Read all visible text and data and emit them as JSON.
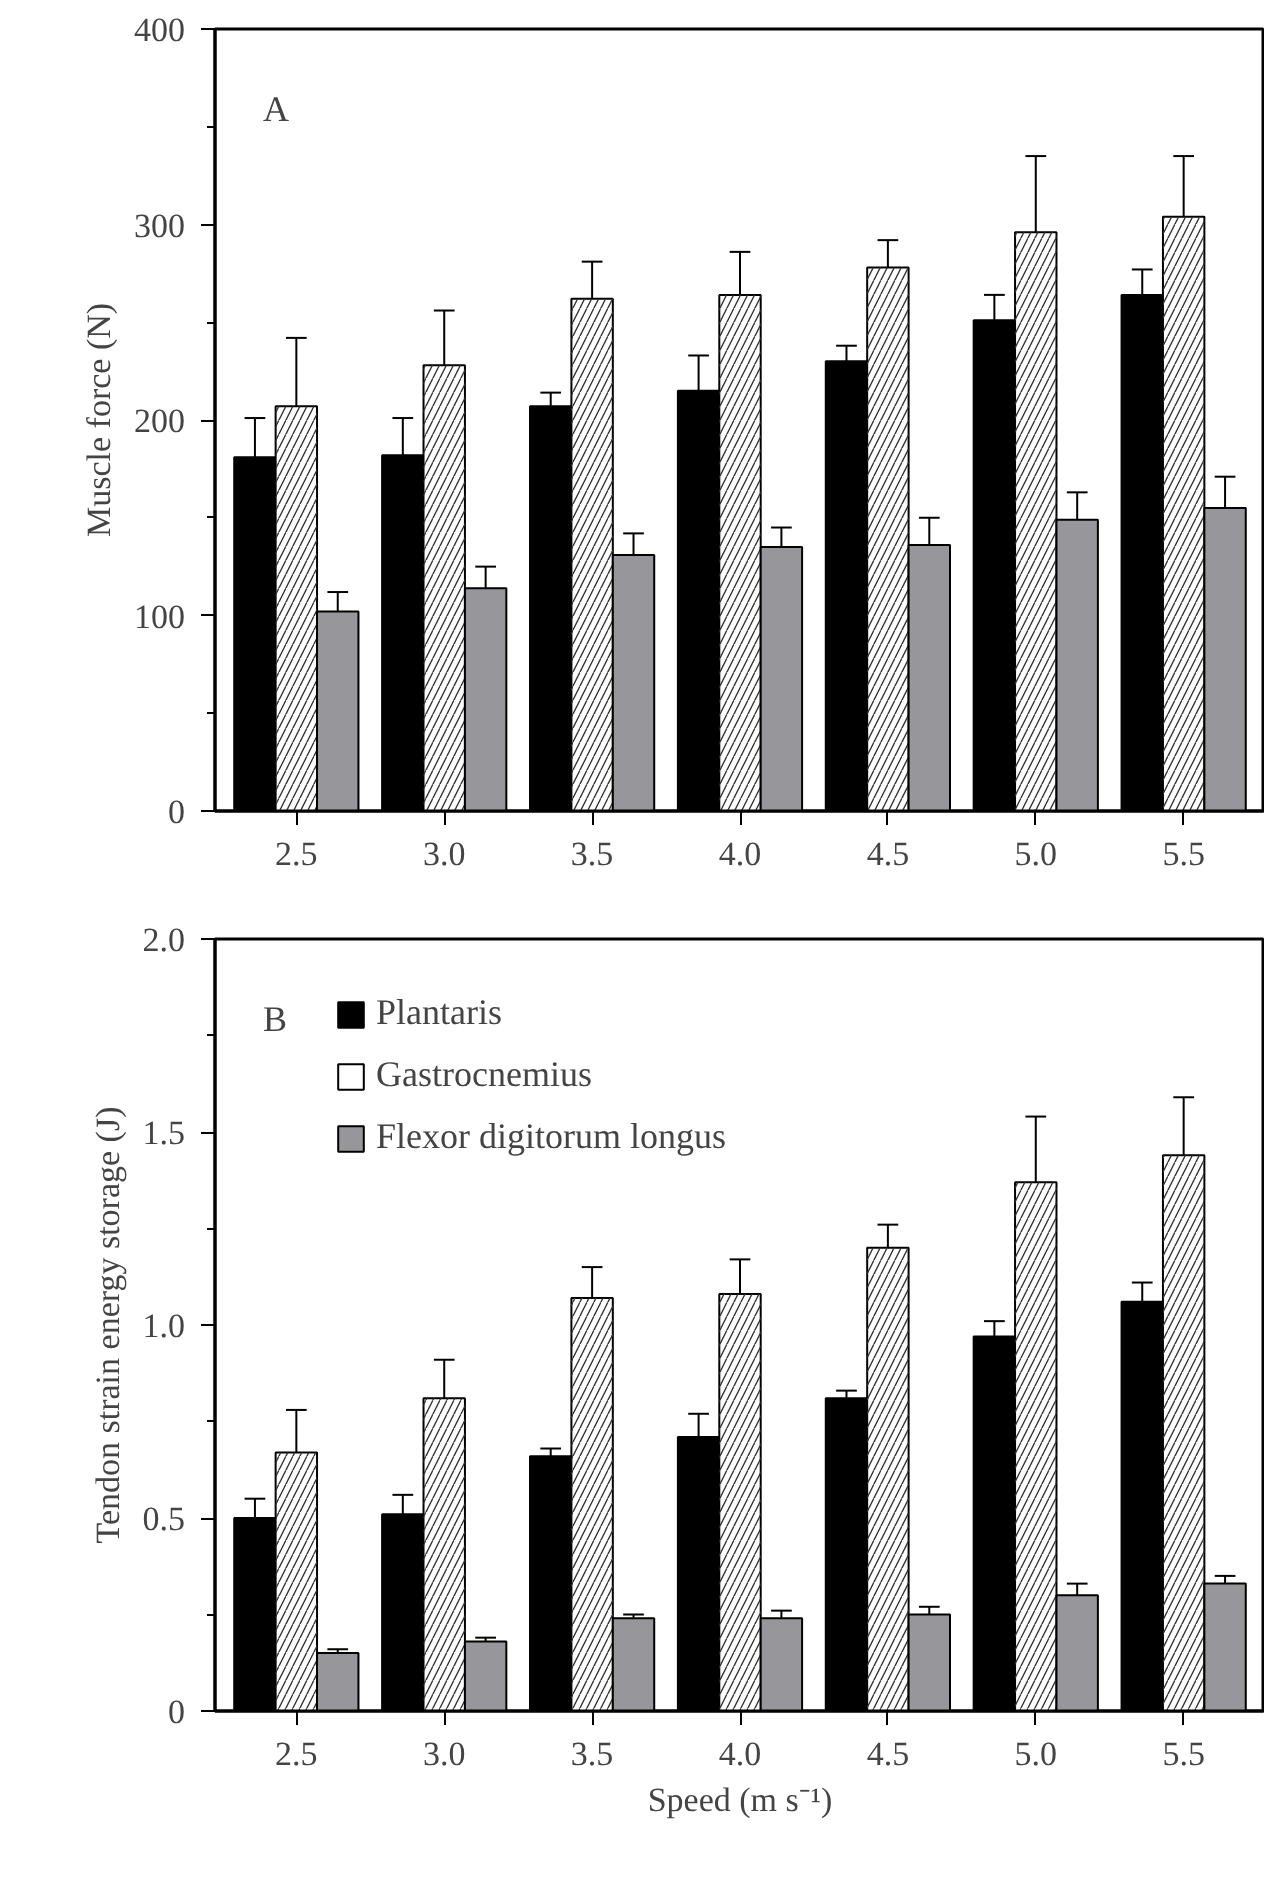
{
  "chart_data": [
    {
      "type": "bar",
      "ylabel": "Muscle force (N)",
      "annotations": [
        "A"
      ],
      "categories": [
        "2.5",
        "3.0",
        "3.5",
        "4.0",
        "4.5",
        "5.0",
        "5.5"
      ],
      "ylim": [
        0,
        400
      ],
      "yticks": [
        0,
        {
          "value": 50,
          "label": null
        },
        100,
        {
          "value": 150,
          "label": null
        },
        200,
        {
          "value": 250,
          "label": null
        },
        300,
        {
          "value": 350,
          "label": null
        },
        400
      ],
      "grid": false,
      "legend": false,
      "series": [
        {
          "color": "#000000",
          "values": [
            181,
            182,
            207,
            215,
            230,
            251,
            264
          ],
          "errors": [
            [
              181,
              201
            ],
            [
              182,
              201
            ],
            [
              207,
              214
            ],
            [
              215,
              233
            ],
            [
              230,
              238
            ],
            [
              251,
              264
            ],
            [
              264,
              277
            ]
          ]
        },
        {
          "color": "#ffffff",
          "values": [
            207,
            228,
            262,
            264,
            278,
            296,
            304
          ],
          "errors": [
            [
              207,
              242
            ],
            [
              228,
              256
            ],
            [
              262,
              281
            ],
            [
              264,
              286
            ],
            [
              278,
              292
            ],
            [
              296,
              335
            ],
            [
              304,
              335
            ]
          ]
        },
        {
          "color": "#97979b",
          "values": [
            102,
            114,
            131,
            135,
            136,
            149,
            155
          ],
          "errors": [
            [
              102,
              112
            ],
            [
              114,
              125
            ],
            [
              131,
              142
            ],
            [
              135,
              145
            ],
            [
              136,
              150
            ],
            [
              149,
              163
            ],
            [
              155,
              171
            ]
          ]
        }
      ]
    },
    {
      "type": "bar",
      "ylabel": "Tendon strain energy storage (J)",
      "xlabel": "Speed (m s⁻¹)",
      "annotations": [
        "B"
      ],
      "categories": [
        "2.5",
        "3.0",
        "3.5",
        "4.0",
        "4.5",
        "5.0",
        "5.5"
      ],
      "ylim": [
        0,
        2.0
      ],
      "yticks": [
        {
          "value": 0,
          "label": "0"
        },
        {
          "value": 0.25,
          "label": null
        },
        {
          "value": 0.5,
          "label": "0.5"
        },
        {
          "value": 0.75,
          "label": null
        },
        {
          "value": 1,
          "label": "1.0"
        },
        {
          "value": 1.25,
          "label": null
        },
        {
          "value": 1.5,
          "label": "1.5"
        },
        {
          "value": 1.75,
          "label": null
        },
        {
          "value": 2,
          "label": "2.0"
        }
      ],
      "grid": false,
      "legend": "top left",
      "series": [
        {
          "name": "Plantaris",
          "color": "#000000",
          "values": [
            0.5,
            0.51,
            0.66,
            0.71,
            0.81,
            0.97,
            1.06
          ],
          "errors": [
            [
              0.5,
              0.55
            ],
            [
              0.51,
              0.56
            ],
            [
              0.66,
              0.68
            ],
            [
              0.71,
              0.77
            ],
            [
              0.81,
              0.83
            ],
            [
              0.97,
              1.01
            ],
            [
              1.06,
              1.11
            ]
          ]
        },
        {
          "name": "Gastrocnemius",
          "color": "#ffffff",
          "values": [
            0.67,
            0.81,
            1.07,
            1.08,
            1.2,
            1.37,
            1.44
          ],
          "errors": [
            [
              0.67,
              0.78
            ],
            [
              0.81,
              0.91
            ],
            [
              1.07,
              1.15
            ],
            [
              1.08,
              1.17
            ],
            [
              1.2,
              1.26
            ],
            [
              1.37,
              1.54
            ],
            [
              1.44,
              1.59
            ]
          ]
        },
        {
          "name": "Flexor digitorum longus",
          "color": "#97979b",
          "values": [
            0.15,
            0.18,
            0.24,
            0.24,
            0.25,
            0.3,
            0.33
          ],
          "errors": [
            [
              0.15,
              0.16
            ],
            [
              0.18,
              0.19
            ],
            [
              0.24,
              0.25
            ],
            [
              0.24,
              0.26
            ],
            [
              0.25,
              0.27
            ],
            [
              0.3,
              0.33
            ],
            [
              0.33,
              0.35
            ]
          ]
        }
      ]
    }
  ]
}
